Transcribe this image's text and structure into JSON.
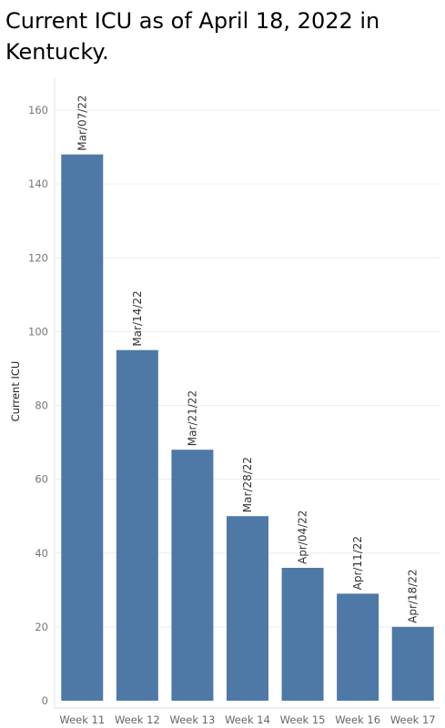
{
  "chart_data": {
    "type": "bar",
    "title": "Current ICU as of April 18, 2022 in Kentucky.",
    "xlabel": "",
    "ylabel": "Current ICU",
    "categories": [
      "Week 11",
      "Week 12",
      "Week 13",
      "Week 14",
      "Week 15",
      "Week 16",
      "Week 17"
    ],
    "values": [
      148,
      95,
      68,
      50,
      36,
      29,
      20
    ],
    "data_labels": [
      "Mar/07/22",
      "Mar/14/22",
      "Mar/21/22",
      "Mar/28/22",
      "Apr/04/22",
      "Apr/11/22",
      "Apr/18/22"
    ],
    "yticks": [
      0,
      20,
      40,
      60,
      80,
      100,
      120,
      140,
      160
    ],
    "ylim": [
      0,
      170
    ],
    "grid": true,
    "bar_color": "#4e79a7"
  }
}
